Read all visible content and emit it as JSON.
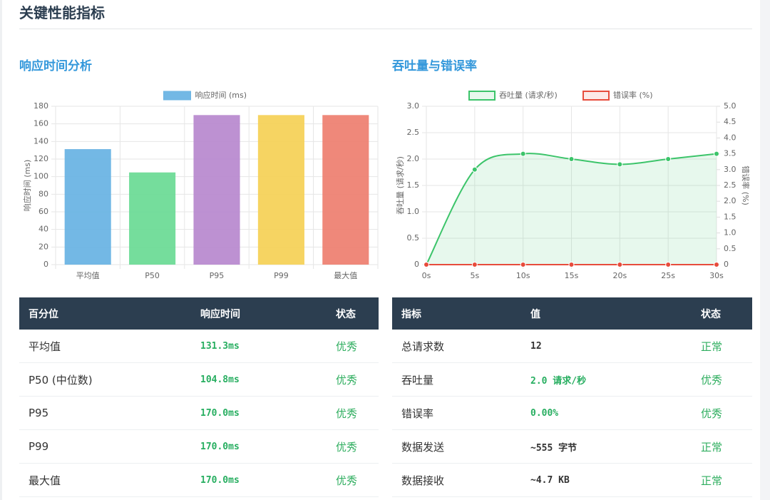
{
  "page_title": "关键性能指标",
  "sections": [
    {
      "title": "响应时间分析",
      "table": {
        "header": [
          "百分位",
          "响应时间",
          "状态"
        ],
        "rows": [
          [
            "平均值",
            "131.3ms",
            "优秀"
          ],
          [
            "P50 (中位数)",
            "104.8ms",
            "优秀"
          ],
          [
            "P95",
            "170.0ms",
            "优秀"
          ],
          [
            "P99",
            "170.0ms",
            "优秀"
          ],
          [
            "最大值",
            "170.0ms",
            "优秀"
          ]
        ]
      }
    },
    {
      "title": "吞吐量与错误率",
      "table": {
        "header": [
          "指标",
          "值",
          "状态"
        ],
        "rows": [
          [
            "总请求数",
            "12",
            "正常"
          ],
          [
            "吞吐量",
            "2.0 请求/秒",
            "优秀"
          ],
          [
            "错误率",
            "0.00%",
            "优秀"
          ],
          [
            "数据发送",
            "~555 字节",
            "正常"
          ],
          [
            "数据接收",
            "~4.7 KB",
            "正常"
          ]
        ]
      }
    }
  ],
  "chart_data": [
    {
      "type": "bar",
      "legend": "top",
      "grid": true,
      "categories": [
        "平均值",
        "P50",
        "P95",
        "P99",
        "最大值"
      ],
      "series": [
        {
          "name": "响应时间 (ms)",
          "values": [
            131.3,
            104.8,
            170,
            170,
            170
          ]
        }
      ],
      "colors": [
        "#6cb4e4",
        "#6edb97",
        "#b98bd0",
        "#f5d25a",
        "#ee8273"
      ],
      "ylabel": "响应时间 (ms)",
      "ylim": [
        0,
        180
      ],
      "yticks": [
        0,
        20,
        40,
        60,
        80,
        100,
        120,
        140,
        160,
        180
      ]
    },
    {
      "type": "line",
      "legend": "top",
      "grid": true,
      "x": [
        0,
        5,
        10,
        15,
        20,
        25,
        30
      ],
      "xlim": [
        0,
        30
      ],
      "xticks": [
        {
          "value": 0,
          "label": "0s"
        },
        {
          "value": 5,
          "label": "5s"
        },
        {
          "value": 10,
          "label": "10s"
        },
        {
          "value": 15,
          "label": "15s"
        },
        {
          "value": 20,
          "label": "20s"
        },
        {
          "value": 25,
          "label": "25s"
        },
        {
          "value": 30,
          "label": "30s"
        }
      ],
      "series": [
        {
          "name": "吞吐量 (请求/秒)",
          "color": "#3cc46a",
          "fill": true,
          "values": [
            0,
            1.8,
            2.1,
            2.0,
            1.9,
            2.0,
            2.1
          ]
        },
        {
          "name": "错误率 (%)",
          "color": "#e74c3c",
          "fill": true,
          "axis": "y2",
          "values": [
            0,
            0,
            0,
            0,
            0,
            0,
            0
          ]
        }
      ],
      "ylabel": "吞吐量 (请求/秒)",
      "y2label": "错误率 (%)",
      "ylim": [
        0,
        3
      ],
      "yticks": [
        0,
        0.5,
        {
          "value": 1,
          "label": "1.0"
        },
        1.5,
        {
          "value": 2,
          "label": "2.0"
        },
        2.5,
        {
          "value": 3,
          "label": "3.0"
        }
      ],
      "y2lim": [
        0,
        5
      ],
      "y2ticks": [
        0,
        0.5,
        {
          "value": 1,
          "label": "1.0"
        },
        1.5,
        {
          "value": 2,
          "label": "2.0"
        },
        2.5,
        {
          "value": 3,
          "label": "3.0"
        },
        3.5,
        {
          "value": 4,
          "label": "4.0"
        },
        4.5,
        {
          "value": 5,
          "label": "5.0"
        }
      ]
    }
  ]
}
